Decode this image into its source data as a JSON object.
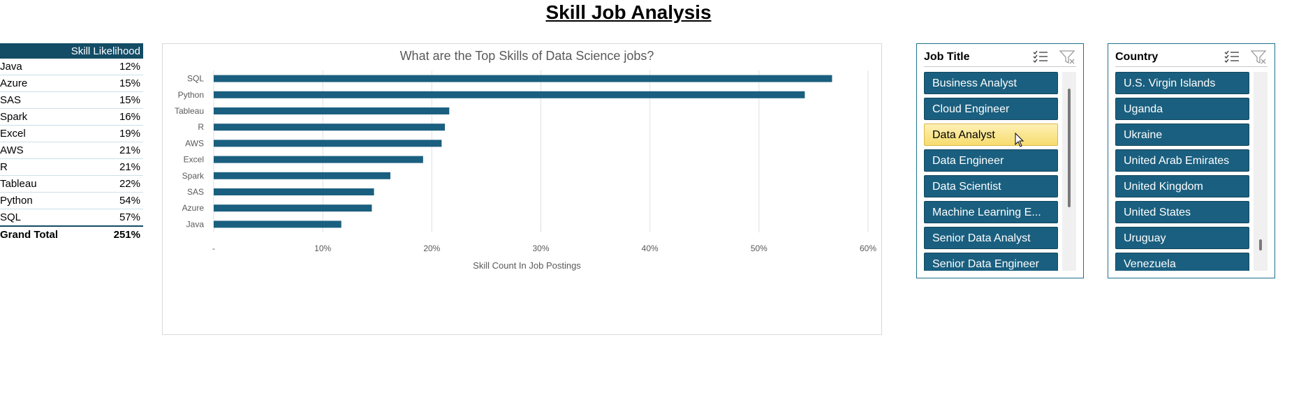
{
  "title": "Skill Job Analysis",
  "pivot": {
    "header": "Skill Likelihood",
    "rows": [
      {
        "skill": "Java",
        "value": "12%"
      },
      {
        "skill": "Azure",
        "value": "15%"
      },
      {
        "skill": "SAS",
        "value": "15%"
      },
      {
        "skill": "Spark",
        "value": "16%"
      },
      {
        "skill": "Excel",
        "value": "19%"
      },
      {
        "skill": "AWS",
        "value": "21%"
      },
      {
        "skill": "R",
        "value": "21%"
      },
      {
        "skill": "Tableau",
        "value": "22%"
      },
      {
        "skill": "Python",
        "value": "54%"
      },
      {
        "skill": "SQL",
        "value": "57%"
      }
    ],
    "total_label": "Grand Total",
    "total_value": "251%"
  },
  "chart_data": {
    "type": "bar",
    "orientation": "horizontal",
    "title": "What are the Top Skills of Data Science jobs?",
    "xlabel": "Skill Count In Job Postings",
    "ylabel": "",
    "categories": [
      "SQL",
      "Python",
      "Tableau",
      "R",
      "AWS",
      "Excel",
      "Spark",
      "SAS",
      "Azure",
      "Java"
    ],
    "values": [
      0.567,
      0.542,
      0.216,
      0.212,
      0.209,
      0.192,
      0.162,
      0.147,
      0.145,
      0.117
    ],
    "xlim": [
      0,
      0.6
    ],
    "x_ticks": [
      0,
      0.1,
      0.2,
      0.3,
      0.4,
      0.5,
      0.6
    ],
    "x_tick_labels": [
      "-",
      "10%",
      "20%",
      "30%",
      "40%",
      "50%",
      "60%"
    ],
    "bar_color": "#1a5f7f",
    "grid": true
  },
  "slicers": {
    "job_title": {
      "title": "Job Title",
      "items": [
        "Business Analyst",
        "Cloud Engineer",
        "Data Analyst",
        "Data Engineer",
        "Data Scientist",
        "Machine Learning E...",
        "Senior Data Analyst",
        "Senior Data Engineer"
      ],
      "selected": "Data Analyst"
    },
    "country": {
      "title": "Country",
      "items": [
        "U.S. Virgin Islands",
        "Uganda",
        "Ukraine",
        "United Arab Emirates",
        "United Kingdom",
        "United States",
        "Uruguay",
        "Venezuela"
      ]
    }
  },
  "colors": {
    "accent": "#1a5f7f",
    "header": "#134c65",
    "selected": "#f7dc6f"
  }
}
